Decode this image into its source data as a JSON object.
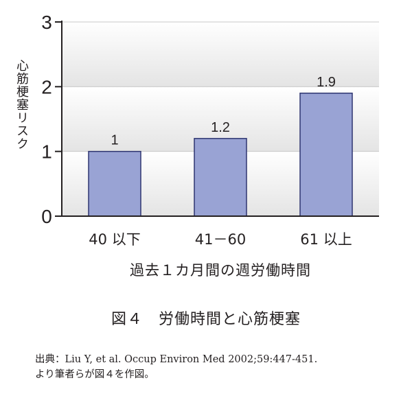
{
  "chart_data": {
    "type": "bar",
    "categories": [
      "40 以下",
      "41－60",
      "61 以上"
    ],
    "values": [
      1,
      1.2,
      1.9
    ],
    "value_labels": [
      "1",
      "1.2",
      "1.9"
    ],
    "ylabel": "心筋梗塞リスク",
    "xlabel": "過去１カ月間の週労働時間",
    "ylim": [
      0,
      3
    ],
    "yticks": [
      0,
      1,
      2,
      3
    ],
    "grid": true,
    "bar_color": "#99a3d4",
    "bar_edge_color": "#2e3570"
  },
  "figure": {
    "caption": "図４　労働時間と心筋梗塞",
    "source_line1": "出典：Liu Y, et al. Occup Environ Med 2002;59:447-451.",
    "source_line2": "より筆者らが図４を作図。"
  }
}
